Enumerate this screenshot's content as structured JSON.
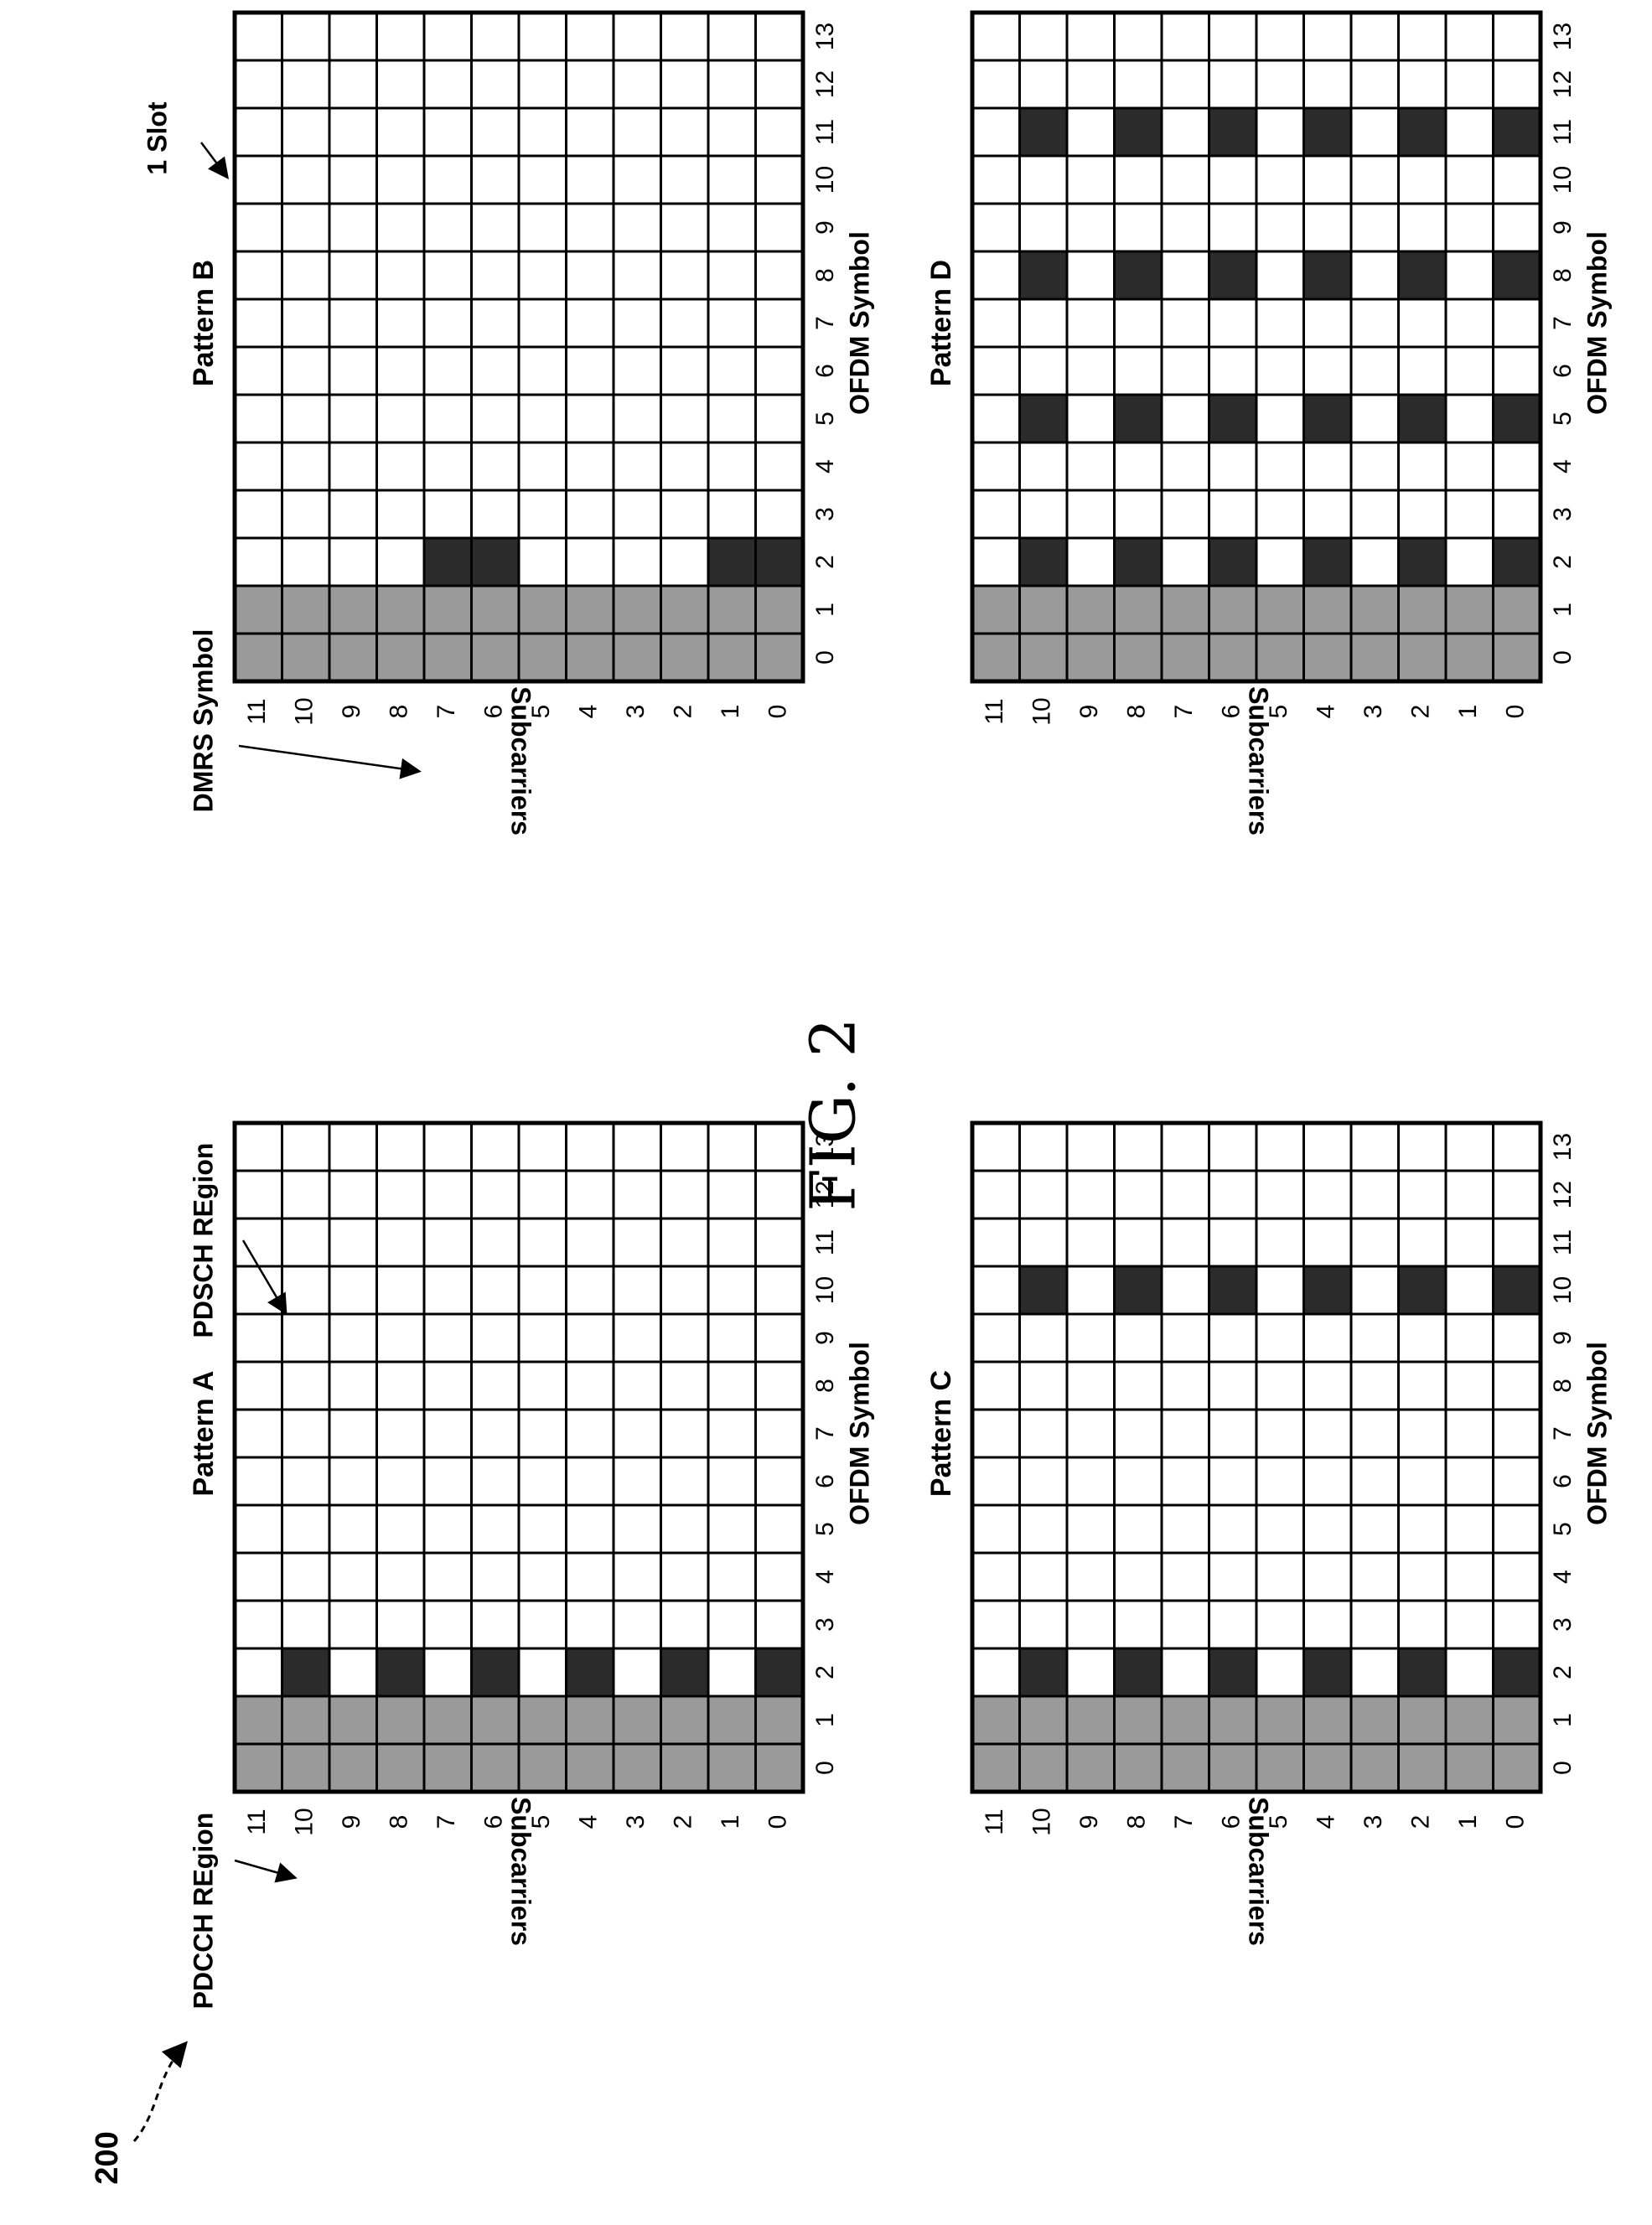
{
  "figure_title": "FIG. 2",
  "figure_ref": "200",
  "colors": {
    "control": "#9a9a9a",
    "dmrs": "#2b2b2b",
    "empty": "#ffffff",
    "line": "#000000"
  },
  "axes": {
    "symbol_label": "OFDM Symbol",
    "subcarrier_label": "Subcarriers",
    "symbols": [
      "0",
      "1",
      "2",
      "3",
      "4",
      "5",
      "6",
      "7",
      "8",
      "9",
      "10",
      "11",
      "12",
      "13"
    ],
    "subcarriers": [
      "0",
      "1",
      "2",
      "3",
      "4",
      "5",
      "6",
      "7",
      "8",
      "9",
      "10",
      "11"
    ]
  },
  "panels": [
    {
      "id": "a",
      "label": "Pattern A",
      "control_symbols": [
        0,
        1
      ],
      "dmrs_symbols": [
        2
      ],
      "dmrs_subcarriers": [
        0,
        2,
        4,
        6,
        8,
        10
      ],
      "annotations": [
        {
          "text": "PDCCH REgion"
        },
        {
          "text": "PDSCH REgion"
        }
      ]
    },
    {
      "id": "b",
      "label": "Pattern B",
      "control_symbols": [
        0,
        1
      ],
      "dmrs_symbols": [
        2
      ],
      "dmrs_subcarriers": [
        0,
        1,
        6,
        7
      ],
      "annotations": [
        {
          "text": "DMRS Symbol"
        },
        {
          "text": "1 Slot"
        }
      ]
    },
    {
      "id": "c",
      "label": "Pattern C",
      "control_symbols": [
        0,
        1
      ],
      "dmrs_symbols": [
        2,
        10
      ],
      "dmrs_subcarriers": [
        0,
        2,
        4,
        6,
        8,
        10
      ],
      "annotations": []
    },
    {
      "id": "d",
      "label": "Pattern D",
      "control_symbols": [
        0,
        1
      ],
      "dmrs_symbols": [
        2,
        5,
        8,
        11
      ],
      "dmrs_subcarriers": [
        0,
        2,
        4,
        6,
        8,
        10
      ],
      "annotations": []
    }
  ]
}
